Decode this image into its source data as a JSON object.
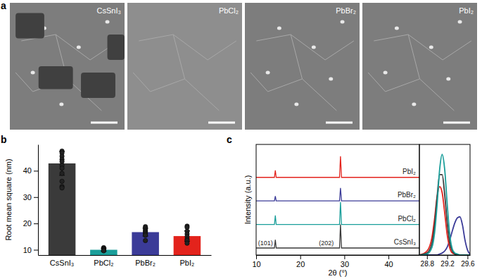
{
  "figure": {
    "title": "a",
    "images": [
      "CsSnI₃",
      "PbCl₂",
      "PbBr₂",
      "PbI₂"
    ]
  },
  "chart_data": [
    {
      "type": "bar",
      "title": "b",
      "y_label": "Root mean square (nm)",
      "categories": [
        "CsSnI₃",
        "PbCl₂",
        "PbBr₂",
        "PbI₂"
      ],
      "values": [
        42.8,
        10,
        16.7,
        15.2
      ],
      "errors": [
        4.5,
        0.6,
        1.5,
        2
      ],
      "points": [
        [
          47.5,
          46.8,
          45.5,
          44.3,
          43.5,
          42,
          41,
          39,
          36,
          34,
          33.5
        ],
        [
          10.8,
          10.5,
          10.2,
          10,
          9.8,
          9.6
        ],
        [
          18.8,
          18.2,
          17.5,
          17,
          16.5,
          16,
          15.5,
          13.5
        ],
        [
          19,
          18.5,
          17,
          16,
          15,
          14,
          13.5,
          12.5
        ]
      ],
      "colors": [
        "#3a3a3a",
        "#1a9e9a",
        "#3b3b98",
        "#e3231c"
      ],
      "ylim": [
        8,
        50
      ],
      "yticks": [
        10,
        20,
        30,
        40
      ]
    },
    {
      "type": "line",
      "title": "c",
      "x_label": "2θ (°)",
      "y_label": "Intensity (a.u.)",
      "x": [
        10,
        14.15,
        14.35,
        14.55,
        28.9,
        29.12,
        29.35,
        47
      ],
      "series": [
        {
          "name": "CsSnI₃",
          "color": "#3a3a3a",
          "values": [
            0,
            0,
            0.35,
            0,
            0,
            1.0,
            0,
            0
          ]
        },
        {
          "name": "PbCl₂",
          "color": "#1a9e9a",
          "values": [
            1,
            1,
            1.38,
            1,
            1,
            1.95,
            1,
            1
          ]
        },
        {
          "name": "PbBr₂",
          "color": "#3b3b98",
          "values": [
            2,
            2,
            2.2,
            2,
            2,
            2.55,
            2,
            2
          ]
        },
        {
          "name": "PbI₂",
          "color": "#e3231c",
          "values": [
            3,
            3,
            3.3,
            3,
            3,
            3.9,
            3,
            3
          ]
        }
      ],
      "xlim": [
        10,
        47
      ],
      "xticks": [
        10,
        20,
        30,
        40
      ],
      "ylim": [
        -0.3,
        4.4
      ],
      "tick_labels": "x",
      "annotations": [
        {
          "text": "(101)",
          "x": 12.1,
          "y": 0.12
        },
        {
          "text": "(202)",
          "x": 25.9,
          "y": 0.12
        }
      ]
    },
    {
      "type": "line",
      "x": [
        28.65,
        28.8,
        28.9,
        28.95,
        29.0,
        29.05,
        29.1,
        29.15,
        29.2,
        29.25,
        29.3,
        29.35,
        29.4,
        29.45,
        29.5,
        29.55,
        29.6,
        29.65
      ],
      "series": [
        {
          "color": "#3b3b98",
          "values": [
            0,
            0,
            0,
            0,
            0,
            0.01,
            0.02,
            0.04,
            0.08,
            0.15,
            0.24,
            0.32,
            0.37,
            0.38,
            0.3,
            0.15,
            0.05,
            0.01
          ]
        },
        {
          "color": "#e3231c",
          "values": [
            0,
            0.04,
            0.18,
            0.36,
            0.58,
            0.68,
            0.62,
            0.42,
            0.2,
            0.07,
            0.02,
            0.01,
            0,
            0,
            0,
            0,
            0,
            0
          ]
        },
        {
          "color": "#3a3a3a",
          "values": [
            0,
            0.02,
            0.12,
            0.3,
            0.58,
            0.8,
            0.8,
            0.6,
            0.32,
            0.12,
            0.04,
            0.01,
            0,
            0,
            0,
            0,
            0,
            0
          ]
        },
        {
          "color": "#1a9e9a",
          "values": [
            0,
            0.01,
            0.08,
            0.22,
            0.5,
            0.85,
            1.0,
            0.85,
            0.5,
            0.2,
            0.06,
            0.02,
            0.01,
            0,
            0,
            0,
            0,
            0
          ]
        }
      ],
      "xlim": [
        28.65,
        29.65
      ],
      "xticks": [
        28.8,
        29.2,
        29.6
      ],
      "ylim": [
        0,
        1.1
      ],
      "tick_labels": "x"
    }
  ]
}
